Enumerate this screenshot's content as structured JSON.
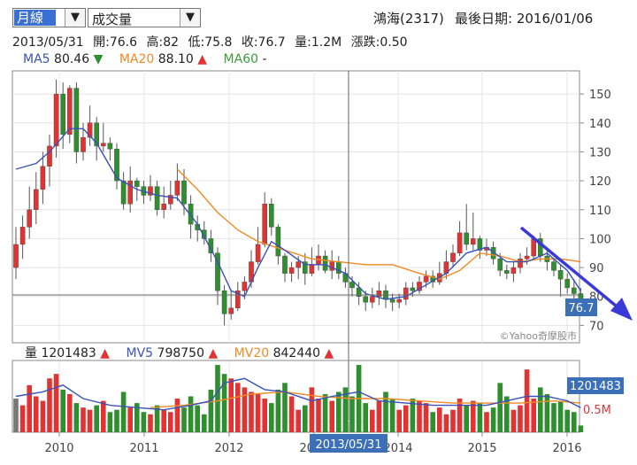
{
  "controls": {
    "period_select": "月線",
    "indicator_select": "成交量"
  },
  "header": {
    "stock": "鴻海(2317)",
    "last_date_label": "最後日期: 2016/01/06"
  },
  "ohlc": {
    "date": "2013/05/31",
    "open": "開:76.6",
    "high": "高:82",
    "low": "低:75.8",
    "close": "收:76.7",
    "volume": "量:1.2M",
    "change": "漲跌:0.50"
  },
  "ma": {
    "ma5_label": "MA5",
    "ma5_value": "80.46",
    "ma5_arrow": "▼",
    "ma20_label": "MA20",
    "ma20_value": "88.10",
    "ma20_arrow": "▲",
    "ma60_label": "MA60",
    "ma60_value": "-"
  },
  "volume_legend": {
    "vol_label": "量",
    "vol_value": "1201483",
    "vol_arrow": "▲",
    "mv5_label": "MV5",
    "mv5_value": "798750",
    "mv5_arrow": "▲",
    "mv20_label": "MV20",
    "mv20_value": "842440",
    "mv20_arrow": "▲"
  },
  "badges": {
    "price": "76.7",
    "volume": "1201483",
    "date": "2013/05/31",
    "vol_axis": "0.5M"
  },
  "watermark": "©Yahoo奇摩股市",
  "colors": {
    "up": "#e03434",
    "down": "#2f8f2f",
    "ma5": "#3a52b8",
    "ma20": "#f08a24",
    "ma60": "#3c9b3c",
    "badge": "#3b6fb6",
    "annotation": "#3a3ad8"
  },
  "chart_data": {
    "type": "candlestick",
    "price_axis": {
      "ticks": [
        70,
        80,
        90,
        100,
        110,
        120,
        130,
        140,
        150
      ],
      "range": [
        64,
        158
      ]
    },
    "x_axis": {
      "ticks": [
        "2010",
        "2011",
        "2012",
        "2013",
        "2014",
        "2015",
        "2016"
      ]
    },
    "candles": [
      [
        90,
        98,
        104,
        86
      ],
      [
        98,
        104,
        108,
        93
      ],
      [
        104,
        110,
        118,
        100
      ],
      [
        110,
        117,
        123,
        105
      ],
      [
        117,
        125,
        130,
        112
      ],
      [
        125,
        132,
        136,
        118
      ],
      [
        132,
        150,
        155,
        128
      ],
      [
        150,
        136,
        154,
        131
      ],
      [
        136,
        152,
        153,
        133
      ],
      [
        152,
        130,
        154,
        126
      ],
      [
        130,
        135,
        140,
        127
      ],
      [
        135,
        140,
        146,
        132
      ],
      [
        140,
        132,
        142,
        127
      ],
      [
        132,
        133,
        140,
        130
      ],
      [
        133,
        131,
        135,
        127
      ],
      [
        131,
        120,
        133,
        117
      ],
      [
        120,
        112,
        123,
        110
      ],
      [
        112,
        120,
        125,
        109
      ],
      [
        120,
        118,
        121,
        113
      ],
      [
        118,
        115,
        120,
        112
      ],
      [
        115,
        118,
        122,
        113
      ],
      [
        118,
        110,
        120,
        108
      ],
      [
        110,
        112,
        118,
        107
      ],
      [
        112,
        115,
        120,
        110
      ],
      [
        115,
        120,
        126,
        113
      ],
      [
        120,
        112,
        124,
        108
      ],
      [
        112,
        105,
        115,
        100
      ],
      [
        105,
        103,
        108,
        99
      ],
      [
        103,
        100,
        106,
        98
      ],
      [
        100,
        95,
        103,
        92
      ],
      [
        95,
        82,
        97,
        77
      ],
      [
        82,
        74,
        84,
        70
      ],
      [
        74,
        76,
        82,
        72
      ],
      [
        76,
        82,
        85,
        75
      ],
      [
        82,
        85,
        87,
        79
      ],
      [
        85,
        92,
        96,
        83
      ],
      [
        92,
        98,
        104,
        91
      ],
      [
        98,
        112,
        116,
        97
      ],
      [
        112,
        104,
        114,
        101
      ],
      [
        104,
        94,
        105,
        91
      ],
      [
        94,
        88,
        95,
        85
      ],
      [
        88,
        90,
        92,
        85
      ],
      [
        90,
        92,
        94,
        86
      ],
      [
        92,
        88,
        95,
        84
      ],
      [
        88,
        91,
        97,
        87
      ],
      [
        91,
        94,
        98,
        89
      ],
      [
        94,
        89,
        96,
        88
      ],
      [
        89,
        92,
        96,
        86
      ],
      [
        92,
        88,
        94,
        86
      ],
      [
        88,
        85,
        90,
        83
      ],
      [
        85,
        83,
        87,
        80
      ],
      [
        83,
        80,
        85,
        77
      ],
      [
        80,
        78,
        82,
        75
      ],
      [
        78,
        80,
        83,
        76
      ],
      [
        80,
        82,
        85,
        77
      ],
      [
        82,
        79,
        84,
        76
      ],
      [
        79,
        78,
        81,
        75
      ],
      [
        78,
        79,
        81,
        76
      ],
      [
        79,
        83,
        85,
        77
      ],
      [
        83,
        82,
        85,
        80
      ],
      [
        82,
        85,
        87,
        81
      ],
      [
        85,
        87,
        89,
        83
      ],
      [
        87,
        85,
        89,
        83
      ],
      [
        85,
        88,
        92,
        84
      ],
      [
        88,
        92,
        96,
        86
      ],
      [
        92,
        95,
        98,
        90
      ],
      [
        95,
        102,
        106,
        94
      ],
      [
        102,
        98,
        112,
        96
      ],
      [
        98,
        100,
        109,
        96
      ],
      [
        100,
        96,
        101,
        93
      ],
      [
        96,
        97,
        100,
        94
      ],
      [
        97,
        93,
        99,
        91
      ],
      [
        93,
        89,
        95,
        87
      ],
      [
        89,
        88,
        91,
        86
      ],
      [
        88,
        90,
        92,
        85
      ],
      [
        90,
        93,
        95,
        88
      ],
      [
        93,
        94,
        97,
        91
      ],
      [
        94,
        100,
        101,
        93
      ],
      [
        100,
        94,
        102,
        92
      ],
      [
        94,
        92,
        97,
        89
      ],
      [
        92,
        89,
        93,
        87
      ],
      [
        89,
        86,
        91,
        80
      ],
      [
        86,
        83,
        88,
        81
      ],
      [
        83,
        81,
        86,
        78
      ],
      [
        81,
        78,
        83,
        76
      ]
    ],
    "volumes_million": [
      1.5,
      1.2,
      2.1,
      1.6,
      1.4,
      2.4,
      2.6,
      1.9,
      1.7,
      1.3,
      1.1,
      1.0,
      1.2,
      1.4,
      0.9,
      1.0,
      1.8,
      1.1,
      1.3,
      0.9,
      0.8,
      1.2,
      1.0,
      0.9,
      1.5,
      1.1,
      1.6,
      1.2,
      0.8,
      1.9,
      3.0,
      2.6,
      2.4,
      2.2,
      2.0,
      1.8,
      1.7,
      1.5,
      1.3,
      1.9,
      2.2,
      1.6,
      1.0,
      1.2,
      2.0,
      1.5,
      1.7,
      1.4,
      1.8,
      2.0,
      1.6,
      3.0,
      1.3,
      1.0,
      1.4,
      1.8,
      1.5,
      1.0,
      1.2,
      1.5,
      1.4,
      1.3,
      0.9,
      1.1,
      0.8,
      1.0,
      1.5,
      1.2,
      1.4,
      1.3,
      0.9,
      1.1,
      2.2,
      1.6,
      1.0,
      1.2,
      2.8,
      1.5,
      2.0,
      1.7,
      1.3,
      1.4,
      1.0,
      0.9,
      0.3
    ],
    "ma5": [
      [
        0,
        124
      ],
      [
        3,
        126
      ],
      [
        5,
        130
      ],
      [
        8,
        138
      ],
      [
        10,
        138
      ],
      [
        12,
        133
      ],
      [
        15,
        121
      ],
      [
        18,
        117
      ],
      [
        21,
        115
      ],
      [
        24,
        114
      ],
      [
        27,
        105
      ],
      [
        30,
        92
      ],
      [
        32,
        82
      ],
      [
        34,
        80
      ],
      [
        36,
        90
      ],
      [
        38,
        99
      ],
      [
        40,
        96
      ],
      [
        43,
        91
      ],
      [
        46,
        91
      ],
      [
        49,
        88
      ],
      [
        52,
        81
      ],
      [
        55,
        79
      ],
      [
        58,
        80
      ],
      [
        61,
        84
      ],
      [
        64,
        88
      ],
      [
        67,
        95
      ],
      [
        70,
        97
      ],
      [
        73,
        92
      ],
      [
        76,
        92
      ],
      [
        79,
        95
      ],
      [
        82,
        89
      ],
      [
        84,
        82
      ]
    ],
    "ma20": [
      [
        24,
        124
      ],
      [
        27,
        117
      ],
      [
        30,
        109
      ],
      [
        33,
        103
      ],
      [
        36,
        99
      ],
      [
        40,
        96
      ],
      [
        44,
        93
      ],
      [
        48,
        92
      ],
      [
        52,
        91
      ],
      [
        56,
        91
      ],
      [
        60,
        88
      ],
      [
        63,
        86
      ],
      [
        66,
        89
      ],
      [
        69,
        95
      ],
      [
        72,
        94
      ],
      [
        75,
        92
      ],
      [
        78,
        93
      ],
      [
        81,
        93
      ],
      [
        84,
        92
      ]
    ],
    "mv5": [
      [
        0,
        1.6
      ],
      [
        4,
        1.8
      ],
      [
        7,
        2.1
      ],
      [
        10,
        1.5
      ],
      [
        14,
        1.2
      ],
      [
        18,
        1.1
      ],
      [
        22,
        1.0
      ],
      [
        26,
        1.2
      ],
      [
        29,
        1.4
      ],
      [
        31,
        2.2
      ],
      [
        34,
        2.4
      ],
      [
        37,
        1.9
      ],
      [
        40,
        1.8
      ],
      [
        44,
        1.4
      ],
      [
        47,
        1.6
      ],
      [
        51,
        1.8
      ],
      [
        54,
        1.4
      ],
      [
        58,
        1.3
      ],
      [
        62,
        1.2
      ],
      [
        66,
        1.2
      ],
      [
        70,
        1.2
      ],
      [
        73,
        1.4
      ],
      [
        76,
        1.6
      ],
      [
        79,
        1.6
      ],
      [
        82,
        1.4
      ],
      [
        84,
        1.1
      ]
    ],
    "mv20": [
      [
        20,
        1.1
      ],
      [
        25,
        1.2
      ],
      [
        30,
        1.4
      ],
      [
        35,
        1.7
      ],
      [
        40,
        1.8
      ],
      [
        45,
        1.6
      ],
      [
        50,
        1.5
      ],
      [
        55,
        1.5
      ],
      [
        60,
        1.4
      ],
      [
        65,
        1.3
      ],
      [
        70,
        1.3
      ],
      [
        75,
        1.3
      ],
      [
        80,
        1.4
      ],
      [
        84,
        1.3
      ]
    ],
    "volume_axis": {
      "range": [
        0,
        3.2
      ],
      "ticks": [
        0.5
      ]
    }
  }
}
